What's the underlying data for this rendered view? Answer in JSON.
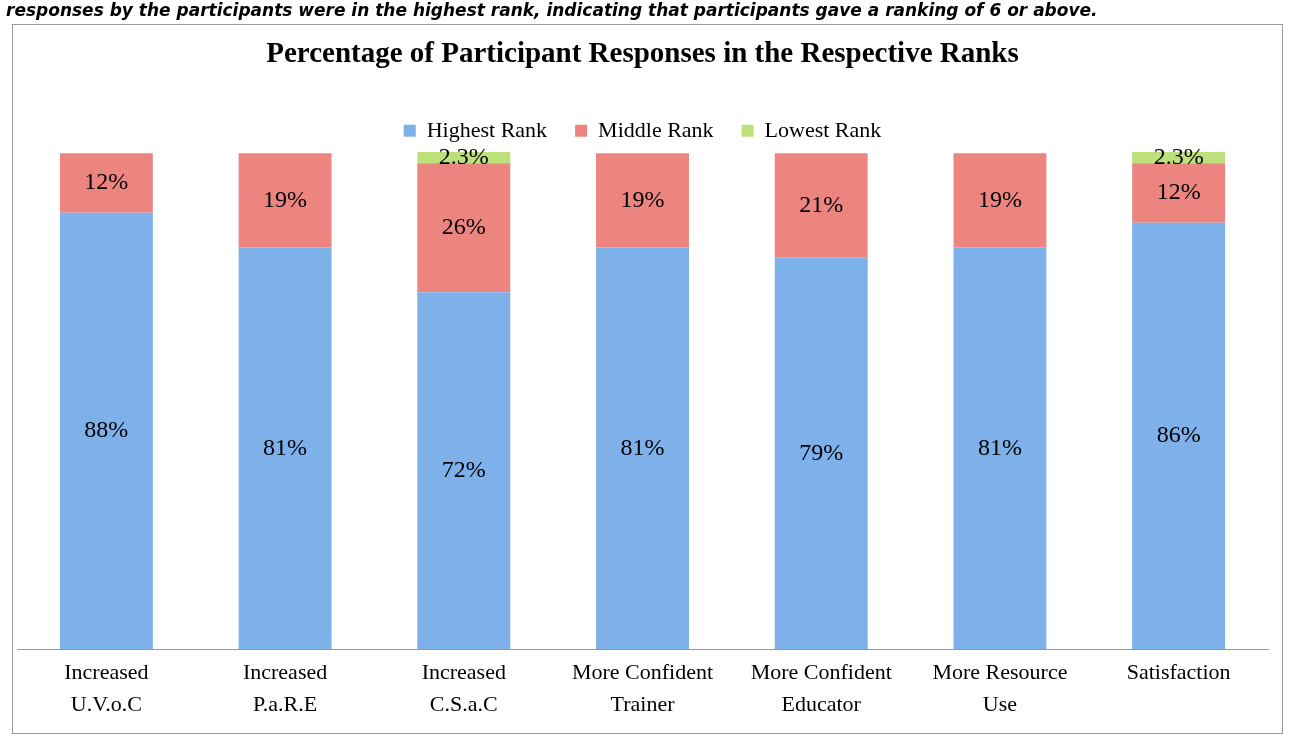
{
  "chart_data": {
    "type": "bar",
    "stacked": true,
    "title": "Percentage of Participant Responses in the Respective Ranks",
    "annotations": [
      "responses by the participants were in the highest rank, indicating that participants gave a ranking of 6 or above."
    ],
    "categories": [
      "Increased U.V.o.C",
      "Increased P.a.R.E",
      "Increased C.S.a.C",
      "More Confident Trainer",
      "More Confident Educator",
      "More Resource Use",
      "Satisfaction"
    ],
    "series": [
      {
        "name": "Highest Rank",
        "color": "#7eb0ea",
        "values": [
          88,
          81,
          72,
          81,
          79,
          81,
          86
        ],
        "value_labels": [
          "88%",
          "81%",
          "72%",
          "81%",
          "79%",
          "81%",
          "86%"
        ]
      },
      {
        "name": "Middle Rank",
        "color": "#ec8580",
        "values": [
          12,
          19,
          26,
          19,
          21,
          19,
          12
        ],
        "value_labels": [
          "12%",
          "19%",
          "26%",
          "19%",
          "21%",
          "19%",
          "12%"
        ]
      },
      {
        "name": "Lowest Rank",
        "color": "#bde07a",
        "values": [
          null,
          null,
          2.3,
          null,
          null,
          null,
          2.3
        ],
        "value_labels": [
          null,
          null,
          "2.3%",
          null,
          null,
          null,
          "2.3%"
        ]
      }
    ],
    "legend": "top",
    "grid": false
  }
}
